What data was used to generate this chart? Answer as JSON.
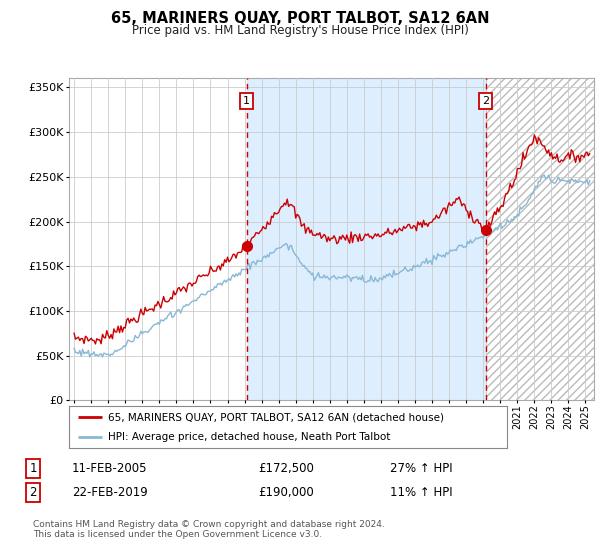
{
  "title": "65, MARINERS QUAY, PORT TALBOT, SA12 6AN",
  "subtitle": "Price paid vs. HM Land Registry's House Price Index (HPI)",
  "legend_line1": "65, MARINERS QUAY, PORT TALBOT, SA12 6AN (detached house)",
  "legend_line2": "HPI: Average price, detached house, Neath Port Talbot",
  "annotation1_date": "11-FEB-2005",
  "annotation1_price": "£172,500",
  "annotation1_hpi": "27% ↑ HPI",
  "annotation2_date": "22-FEB-2019",
  "annotation2_price": "£190,000",
  "annotation2_hpi": "11% ↑ HPI",
  "sale1_year": 2005.12,
  "sale1_value": 172500,
  "sale2_year": 2019.14,
  "sale2_value": 190000,
  "footer": "Contains HM Land Registry data © Crown copyright and database right 2024.\nThis data is licensed under the Open Government Licence v3.0.",
  "red_line_color": "#cc0000",
  "blue_line_color": "#89b8d4",
  "background_fill": "#ddeeff",
  "sale_dot_color": "#cc0000",
  "vline_color": "#cc0000",
  "grid_color": "#cccccc",
  "ylim": [
    0,
    360000
  ],
  "xlim_start": 1994.7,
  "xlim_end": 2025.5
}
